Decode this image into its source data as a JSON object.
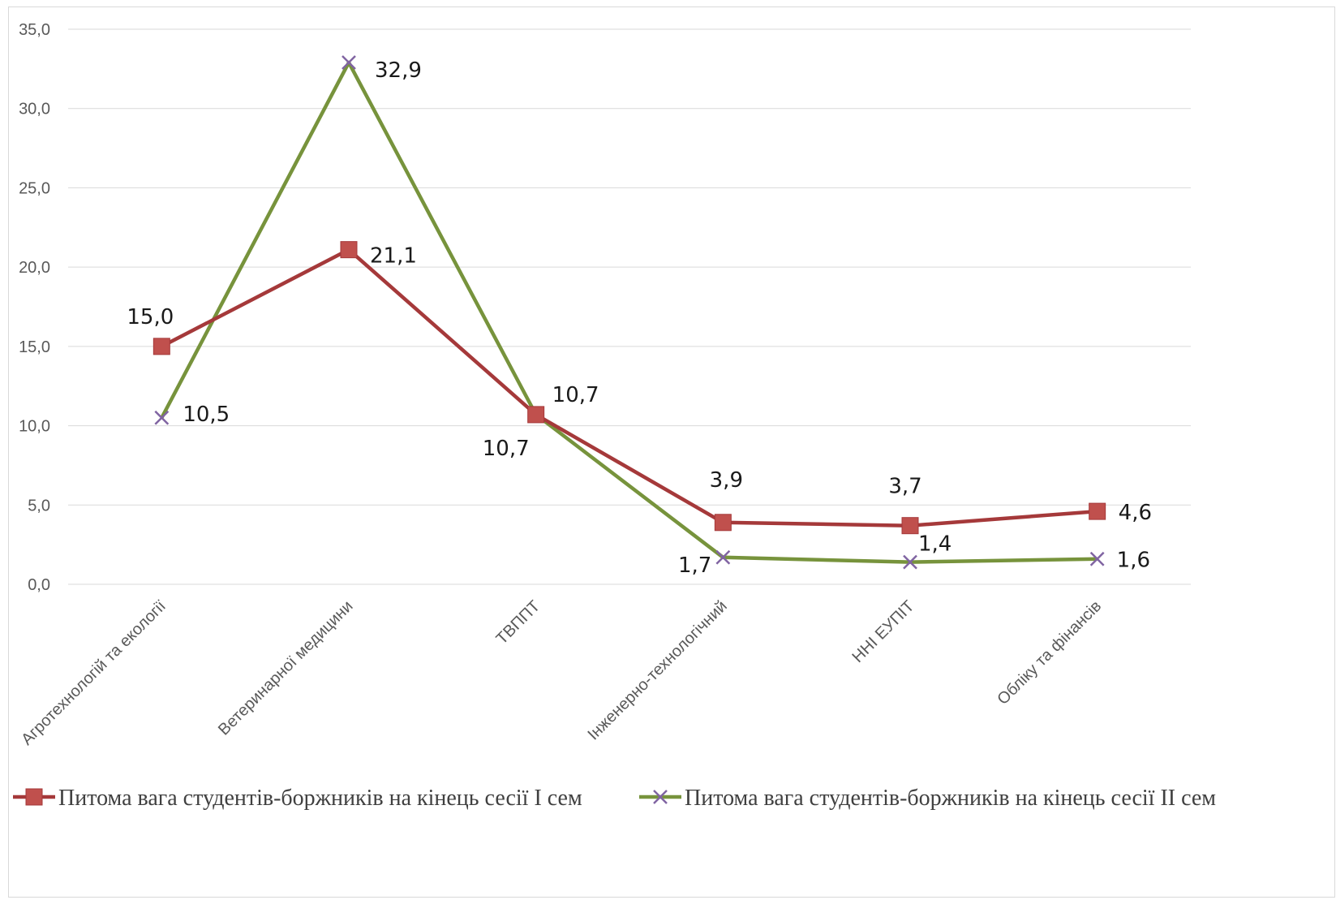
{
  "chart_data": {
    "type": "line",
    "categories": [
      "Агротехнологій та екології",
      "Ветеринарної медицини",
      "ТВППТ",
      "Інженерно-технологічний",
      "ННІ ЕУПІТ",
      "Обліку та фінансів"
    ],
    "series": [
      {
        "name": "Питома вага студентів-боржників на кінець сесії  I сем",
        "values": [
          15.0,
          21.1,
          10.7,
          3.9,
          3.7,
          4.6
        ],
        "labels": [
          "15,0",
          "21,1",
          "10,7",
          "3,9",
          "3,7",
          "4,6"
        ],
        "color": "#a5393a",
        "marker_color": "#c0504d",
        "marker": "square"
      },
      {
        "name": "Питома вага студентів-боржників на кінець сесії  II сем",
        "values": [
          10.5,
          32.9,
          10.7,
          1.7,
          1.4,
          1.6
        ],
        "labels": [
          "10,5",
          "32,9",
          "10,7",
          "1,7",
          "1,4",
          "1,6"
        ],
        "color": "#77933c",
        "marker_color": "#8064a2",
        "marker": "x"
      }
    ],
    "y_ticks": [
      "0,0",
      "5,0",
      "10,0",
      "15,0",
      "20,0",
      "25,0",
      "30,0",
      "35,0"
    ],
    "ylim": [
      0,
      35
    ],
    "grid": true,
    "legend_position": "bottom",
    "title": "",
    "xlabel": "",
    "ylabel": ""
  }
}
